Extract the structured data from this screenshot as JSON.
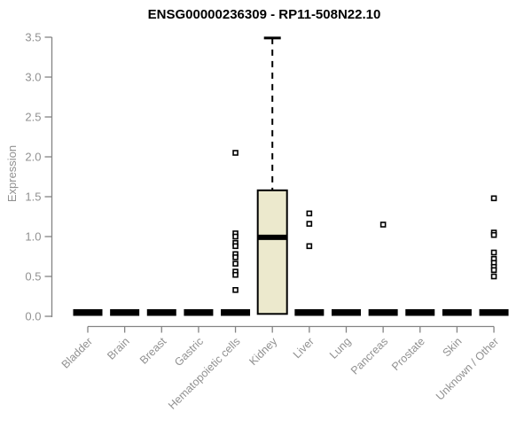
{
  "chart_data": {
    "type": "boxplot",
    "title": "ENSG00000236309 - RP11-508N22.10",
    "ylabel": "Expression",
    "xlabel": "",
    "ylim": [
      0.0,
      3.5
    ],
    "yticks": [
      "0.0",
      "0.5",
      "1.0",
      "1.5",
      "2.0",
      "2.5",
      "3.0",
      "3.5"
    ],
    "grid": false,
    "legend": "none",
    "categories": [
      "Bladder",
      "Brain",
      "Breast",
      "Gastric",
      "Hematopoietic cells",
      "Kidney",
      "Liver",
      "Lung",
      "Pancreas",
      "Prostate",
      "Skin",
      "Unknown / Other"
    ],
    "boxes": [
      {
        "category": "Bladder",
        "q1": 0,
        "median": 0,
        "q3": 0,
        "whisker_low": 0,
        "whisker_high": 0,
        "outliers": []
      },
      {
        "category": "Brain",
        "q1": 0,
        "median": 0,
        "q3": 0,
        "whisker_low": 0,
        "whisker_high": 0,
        "outliers": []
      },
      {
        "category": "Breast",
        "q1": 0,
        "median": 0,
        "q3": 0,
        "whisker_low": 0,
        "whisker_high": 0,
        "outliers": []
      },
      {
        "category": "Gastric",
        "q1": 0,
        "median": 0,
        "q3": 0,
        "whisker_low": 0,
        "whisker_high": 0,
        "outliers": []
      },
      {
        "category": "Hematopoietic cells",
        "q1": 0,
        "median": 0,
        "q3": 0,
        "whisker_low": 0,
        "whisker_high": 0,
        "outliers": [
          2.05,
          1.04,
          1.0,
          0.92,
          0.88,
          0.78,
          0.74,
          0.66,
          0.56,
          0.52,
          0.33
        ]
      },
      {
        "category": "Kidney",
        "q1": 0.03,
        "median": 0.99,
        "q3": 1.58,
        "whisker_low": 0,
        "whisker_high": 3.49,
        "outliers": []
      },
      {
        "category": "Liver",
        "q1": 0,
        "median": 0,
        "q3": 0,
        "whisker_low": 0,
        "whisker_high": 0,
        "outliers": [
          1.29,
          1.16,
          0.88
        ]
      },
      {
        "category": "Lung",
        "q1": 0,
        "median": 0,
        "q3": 0,
        "whisker_low": 0,
        "whisker_high": 0,
        "outliers": []
      },
      {
        "category": "Pancreas",
        "q1": 0,
        "median": 0,
        "q3": 0,
        "whisker_low": 0,
        "whisker_high": 0,
        "outliers": [
          1.15
        ]
      },
      {
        "category": "Prostate",
        "q1": 0,
        "median": 0,
        "q3": 0,
        "whisker_low": 0,
        "whisker_high": 0,
        "outliers": []
      },
      {
        "category": "Skin",
        "q1": 0,
        "median": 0,
        "q3": 0,
        "whisker_low": 0,
        "whisker_high": 0,
        "outliers": []
      },
      {
        "category": "Unknown / Other",
        "q1": 0,
        "median": 0,
        "q3": 0,
        "whisker_low": 0,
        "whisker_high": 0,
        "outliers": [
          1.48,
          1.05,
          1.02,
          0.8,
          0.72,
          0.67,
          0.62,
          0.58,
          0.5
        ]
      }
    ]
  },
  "style": {
    "box_fill": "#ece9cd",
    "box_stroke": "#000000",
    "flat_bar_color": "#000000",
    "axis_color": "#848484",
    "label_color": "#919191",
    "title_color": "#000000",
    "outlier_fill": "#ffffff",
    "outlier_stroke": "#000000"
  }
}
